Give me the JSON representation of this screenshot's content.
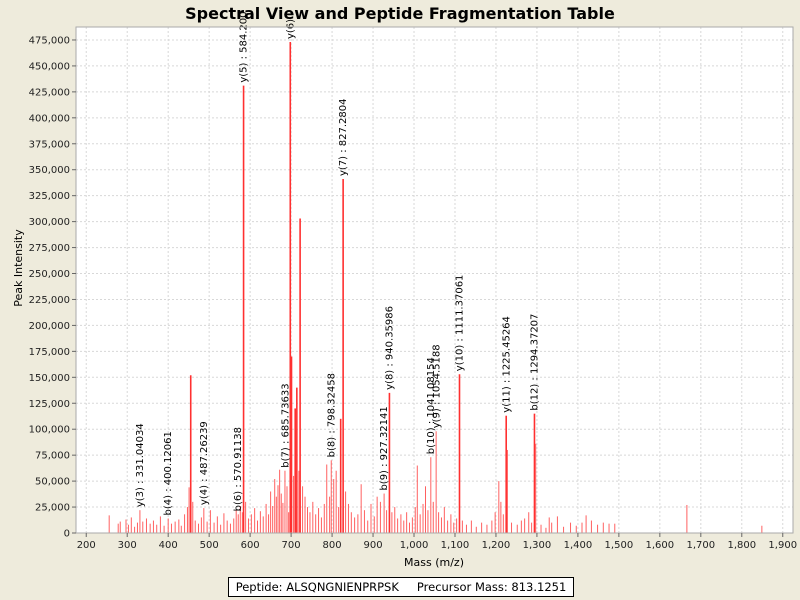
{
  "chart_data": {
    "type": "bar",
    "title": "Spectral View and Peptide Fragmentation Table",
    "xlabel": "Mass (m/z)",
    "ylabel": "Peak Intensity",
    "xlim": [
      175,
      1925
    ],
    "ylim": [
      0,
      487500
    ],
    "xticks": [
      200,
      300,
      400,
      500,
      600,
      700,
      800,
      900,
      1000,
      1100,
      1200,
      1300,
      1400,
      1500,
      1600,
      1700,
      1800,
      1900
    ],
    "xtick_labels": [
      "200",
      "300",
      "400",
      "500",
      "600",
      "700",
      "800",
      "900",
      "1,000",
      "1,100",
      "1,200",
      "1,300",
      "1,400",
      "1,500",
      "1,600",
      "1,700",
      "1,800",
      "1,900"
    ],
    "yticks": [
      0,
      25000,
      50000,
      75000,
      100000,
      125000,
      150000,
      175000,
      200000,
      225000,
      250000,
      275000,
      300000,
      325000,
      350000,
      375000,
      400000,
      425000,
      450000,
      475000
    ],
    "ytick_labels": [
      "0",
      "25,000",
      "50,000",
      "75,000",
      "100,000",
      "125,000",
      "150,000",
      "175,000",
      "200,000",
      "225,000",
      "250,000",
      "275,000",
      "300,000",
      "325,000",
      "350,000",
      "375,000",
      "400,000",
      "425,000",
      "450,000",
      "475,000"
    ],
    "peaks": [
      {
        "mz": 256,
        "intensity": 17000
      },
      {
        "mz": 278,
        "intensity": 9000
      },
      {
        "mz": 283,
        "intensity": 11000
      },
      {
        "mz": 297,
        "intensity": 13000
      },
      {
        "mz": 303,
        "intensity": 8000
      },
      {
        "mz": 310,
        "intensity": 15000
      },
      {
        "mz": 318,
        "intensity": 6000
      },
      {
        "mz": 325,
        "intensity": 10000
      },
      {
        "mz": 331,
        "intensity": 22000
      },
      {
        "mz": 338,
        "intensity": 11000
      },
      {
        "mz": 347,
        "intensity": 14000
      },
      {
        "mz": 356,
        "intensity": 9000
      },
      {
        "mz": 364,
        "intensity": 12000
      },
      {
        "mz": 372,
        "intensity": 8000
      },
      {
        "mz": 381,
        "intensity": 16000
      },
      {
        "mz": 390,
        "intensity": 7000
      },
      {
        "mz": 400,
        "intensity": 14000
      },
      {
        "mz": 408,
        "intensity": 9000
      },
      {
        "mz": 417,
        "intensity": 11000
      },
      {
        "mz": 426,
        "intensity": 13000
      },
      {
        "mz": 432,
        "intensity": 7000
      },
      {
        "mz": 440,
        "intensity": 18000
      },
      {
        "mz": 447,
        "intensity": 25000
      },
      {
        "mz": 451,
        "intensity": 44000
      },
      {
        "mz": 455,
        "intensity": 152000
      },
      {
        "mz": 460,
        "intensity": 30000
      },
      {
        "mz": 466,
        "intensity": 12000
      },
      {
        "mz": 474,
        "intensity": 9000
      },
      {
        "mz": 481,
        "intensity": 15000
      },
      {
        "mz": 487,
        "intensity": 24000
      },
      {
        "mz": 495,
        "intensity": 11000
      },
      {
        "mz": 503,
        "intensity": 22000
      },
      {
        "mz": 512,
        "intensity": 10000
      },
      {
        "mz": 520,
        "intensity": 16000
      },
      {
        "mz": 528,
        "intensity": 8000
      },
      {
        "mz": 536,
        "intensity": 19000
      },
      {
        "mz": 544,
        "intensity": 12000
      },
      {
        "mz": 552,
        "intensity": 9000
      },
      {
        "mz": 560,
        "intensity": 14000
      },
      {
        "mz": 566,
        "intensity": 22000
      },
      {
        "mz": 571,
        "intensity": 18000
      },
      {
        "mz": 576,
        "intensity": 26000
      },
      {
        "mz": 581,
        "intensity": 20000
      },
      {
        "mz": 584,
        "intensity": 431000
      },
      {
        "mz": 589,
        "intensity": 30000
      },
      {
        "mz": 596,
        "intensity": 14000
      },
      {
        "mz": 603,
        "intensity": 18000
      },
      {
        "mz": 611,
        "intensity": 24000
      },
      {
        "mz": 618,
        "intensity": 12000
      },
      {
        "mz": 625,
        "intensity": 21000
      },
      {
        "mz": 632,
        "intensity": 16000
      },
      {
        "mz": 639,
        "intensity": 28000
      },
      {
        "mz": 645,
        "intensity": 18000
      },
      {
        "mz": 650,
        "intensity": 40000
      },
      {
        "mz": 655,
        "intensity": 26000
      },
      {
        "mz": 660,
        "intensity": 52000
      },
      {
        "mz": 664,
        "intensity": 35000
      },
      {
        "mz": 668,
        "intensity": 46000
      },
      {
        "mz": 672,
        "intensity": 61000
      },
      {
        "mz": 676,
        "intensity": 38000
      },
      {
        "mz": 680,
        "intensity": 29000
      },
      {
        "mz": 685,
        "intensity": 60000
      },
      {
        "mz": 690,
        "intensity": 45000
      },
      {
        "mz": 694,
        "intensity": 20000
      },
      {
        "mz": 698,
        "intensity": 473000
      },
      {
        "mz": 701,
        "intensity": 170000
      },
      {
        "mz": 706,
        "intensity": 55000
      },
      {
        "mz": 710,
        "intensity": 120000
      },
      {
        "mz": 714,
        "intensity": 140000
      },
      {
        "mz": 719,
        "intensity": 60000
      },
      {
        "mz": 722,
        "intensity": 303000
      },
      {
        "mz": 728,
        "intensity": 45000
      },
      {
        "mz": 734,
        "intensity": 35000
      },
      {
        "mz": 740,
        "intensity": 25000
      },
      {
        "mz": 746,
        "intensity": 20000
      },
      {
        "mz": 753,
        "intensity": 30000
      },
      {
        "mz": 760,
        "intensity": 18000
      },
      {
        "mz": 767,
        "intensity": 24000
      },
      {
        "mz": 774,
        "intensity": 15000
      },
      {
        "mz": 781,
        "intensity": 28000
      },
      {
        "mz": 787,
        "intensity": 66000
      },
      {
        "mz": 794,
        "intensity": 35000
      },
      {
        "mz": 798,
        "intensity": 70000
      },
      {
        "mz": 804,
        "intensity": 52000
      },
      {
        "mz": 810,
        "intensity": 60000
      },
      {
        "mz": 816,
        "intensity": 25000
      },
      {
        "mz": 821,
        "intensity": 110000
      },
      {
        "mz": 827,
        "intensity": 341000
      },
      {
        "mz": 833,
        "intensity": 40000
      },
      {
        "mz": 840,
        "intensity": 28000
      },
      {
        "mz": 847,
        "intensity": 20000
      },
      {
        "mz": 855,
        "intensity": 15000
      },
      {
        "mz": 863,
        "intensity": 18000
      },
      {
        "mz": 871,
        "intensity": 47000
      },
      {
        "mz": 879,
        "intensity": 22000
      },
      {
        "mz": 887,
        "intensity": 12000
      },
      {
        "mz": 895,
        "intensity": 28000
      },
      {
        "mz": 903,
        "intensity": 16000
      },
      {
        "mz": 910,
        "intensity": 35000
      },
      {
        "mz": 918,
        "intensity": 30000
      },
      {
        "mz": 927,
        "intensity": 38000
      },
      {
        "mz": 933,
        "intensity": 22000
      },
      {
        "mz": 940,
        "intensity": 135000
      },
      {
        "mz": 946,
        "intensity": 20000
      },
      {
        "mz": 953,
        "intensity": 25000
      },
      {
        "mz": 960,
        "intensity": 14000
      },
      {
        "mz": 968,
        "intensity": 18000
      },
      {
        "mz": 975,
        "intensity": 12000
      },
      {
        "mz": 982,
        "intensity": 20000
      },
      {
        "mz": 989,
        "intensity": 10000
      },
      {
        "mz": 996,
        "intensity": 15000
      },
      {
        "mz": 1003,
        "intensity": 25000
      },
      {
        "mz": 1008,
        "intensity": 65000
      },
      {
        "mz": 1015,
        "intensity": 18000
      },
      {
        "mz": 1022,
        "intensity": 28000
      },
      {
        "mz": 1028,
        "intensity": 45000
      },
      {
        "mz": 1034,
        "intensity": 22000
      },
      {
        "mz": 1041,
        "intensity": 73000
      },
      {
        "mz": 1047,
        "intensity": 30000
      },
      {
        "mz": 1054,
        "intensity": 98000
      },
      {
        "mz": 1060,
        "intensity": 20000
      },
      {
        "mz": 1067,
        "intensity": 15000
      },
      {
        "mz": 1074,
        "intensity": 25000
      },
      {
        "mz": 1082,
        "intensity": 12000
      },
      {
        "mz": 1090,
        "intensity": 18000
      },
      {
        "mz": 1097,
        "intensity": 10000
      },
      {
        "mz": 1104,
        "intensity": 14000
      },
      {
        "mz": 1111,
        "intensity": 153000
      },
      {
        "mz": 1118,
        "intensity": 12000
      },
      {
        "mz": 1128,
        "intensity": 8000
      },
      {
        "mz": 1140,
        "intensity": 12000
      },
      {
        "mz": 1152,
        "intensity": 6000
      },
      {
        "mz": 1165,
        "intensity": 10000
      },
      {
        "mz": 1178,
        "intensity": 8000
      },
      {
        "mz": 1190,
        "intensity": 12000
      },
      {
        "mz": 1198,
        "intensity": 20000
      },
      {
        "mz": 1207,
        "intensity": 50000
      },
      {
        "mz": 1212,
        "intensity": 30000
      },
      {
        "mz": 1218,
        "intensity": 18000
      },
      {
        "mz": 1225,
        "intensity": 113000
      },
      {
        "mz": 1228,
        "intensity": 80000
      },
      {
        "mz": 1238,
        "intensity": 10000
      },
      {
        "mz": 1252,
        "intensity": 8000
      },
      {
        "mz": 1262,
        "intensity": 12000
      },
      {
        "mz": 1270,
        "intensity": 14000
      },
      {
        "mz": 1280,
        "intensity": 20000
      },
      {
        "mz": 1287,
        "intensity": 10000
      },
      {
        "mz": 1294,
        "intensity": 115000
      },
      {
        "mz": 1297,
        "intensity": 86000
      },
      {
        "mz": 1310,
        "intensity": 8000
      },
      {
        "mz": 1322,
        "intensity": 5000
      },
      {
        "mz": 1330,
        "intensity": 15000
      },
      {
        "mz": 1336,
        "intensity": 10000
      },
      {
        "mz": 1350,
        "intensity": 16000
      },
      {
        "mz": 1365,
        "intensity": 6000
      },
      {
        "mz": 1382,
        "intensity": 10000
      },
      {
        "mz": 1396,
        "intensity": 7000
      },
      {
        "mz": 1410,
        "intensity": 10000
      },
      {
        "mz": 1420,
        "intensity": 17000
      },
      {
        "mz": 1433,
        "intensity": 12000
      },
      {
        "mz": 1448,
        "intensity": 8000
      },
      {
        "mz": 1462,
        "intensity": 10000
      },
      {
        "mz": 1476,
        "intensity": 9000
      },
      {
        "mz": 1490,
        "intensity": 9000
      },
      {
        "mz": 1666,
        "intensity": 27000
      },
      {
        "mz": 1849,
        "intensity": 7000
      }
    ],
    "annotations": [
      {
        "mz": 331.04034,
        "intensity": 22000,
        "label": "y(3) : 331.04034"
      },
      {
        "mz": 400.12061,
        "intensity": 14000,
        "label": "b(4) : 400.12061"
      },
      {
        "mz": 487.26239,
        "intensity": 24000,
        "label": "y(4) : 487.26239"
      },
      {
        "mz": 570.91138,
        "intensity": 18000,
        "label": "b(6) : 570.91138"
      },
      {
        "mz": 584.2,
        "intensity": 431000,
        "label": "y(5) : 584.200"
      },
      {
        "mz": 685.73633,
        "intensity": 60000,
        "label": "b(7) : 685.73633"
      },
      {
        "mz": 698.0,
        "intensity": 473000,
        "label": "y(6) :"
      },
      {
        "mz": 798.32458,
        "intensity": 70000,
        "label": "b(8) : 798.32458"
      },
      {
        "mz": 827.2804,
        "intensity": 341000,
        "label": "y(7) : 827.2804"
      },
      {
        "mz": 927.32141,
        "intensity": 38000,
        "label": "b(9) : 927.32141"
      },
      {
        "mz": 940.35986,
        "intensity": 135000,
        "label": "y(8) : 940.35986"
      },
      {
        "mz": 1041.08154,
        "intensity": 73000,
        "label": "b(10) : 1041.08154"
      },
      {
        "mz": 1054.5188,
        "intensity": 98000,
        "label": "y(9) : 1054.5188"
      },
      {
        "mz": 1111.37061,
        "intensity": 153000,
        "label": "y(10) : 1111.37061"
      },
      {
        "mz": 1225.45264,
        "intensity": 113000,
        "label": "y(11) : 1225.45264"
      },
      {
        "mz": 1294.37207,
        "intensity": 115000,
        "label": "b(12) : 1294.37207"
      }
    ]
  },
  "footer": {
    "peptide_label": "Peptide: ALSQNGNIENPRPSK",
    "precursor_label": "Precursor Mass: 813.1251"
  },
  "colors": {
    "peak": "#ff6060",
    "peak_strong": "#ff3030",
    "grid": "#d8d8d8",
    "background": "#eeebdc",
    "plot_bg": "#ffffff"
  }
}
